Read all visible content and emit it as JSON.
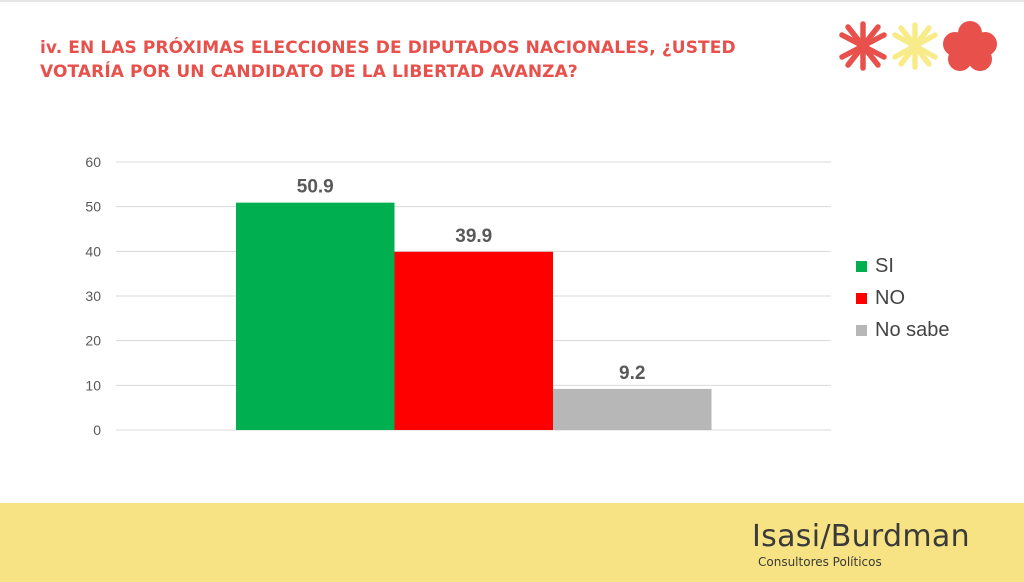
{
  "title": "iv. EN LAS PRÓXIMAS ELECCIONES DE DIPUTADOS NACIONALES, ¿USTED VOTARÍA POR UN CANDIDATO DE LA LIBERTAD AVANZA?",
  "brand": {
    "name": "Isasi/Burdman",
    "subtitle": "Consultores Políticos"
  },
  "logo_icons": [
    "red-asterisk-icon",
    "yellow-asterisk-icon",
    "red-flower-icon"
  ],
  "colors": {
    "title": "#e8504b",
    "footer": "#f7e383",
    "logo_red": "#e8504b",
    "logo_yellow": "#f8ec8a"
  },
  "chart_data": {
    "type": "bar",
    "categories": [
      "SI",
      "NO",
      "No sabe"
    ],
    "values": [
      50.9,
      39.9,
      9.2
    ],
    "data_labels": [
      "50.9",
      "39.9",
      "9.2"
    ],
    "colors": [
      "#00b050",
      "#ff0000",
      "#b7b7b7"
    ],
    "yticks": [
      0,
      10,
      20,
      30,
      40,
      50,
      60
    ],
    "ylim": [
      0,
      60
    ],
    "grid": true,
    "legend": "right"
  }
}
